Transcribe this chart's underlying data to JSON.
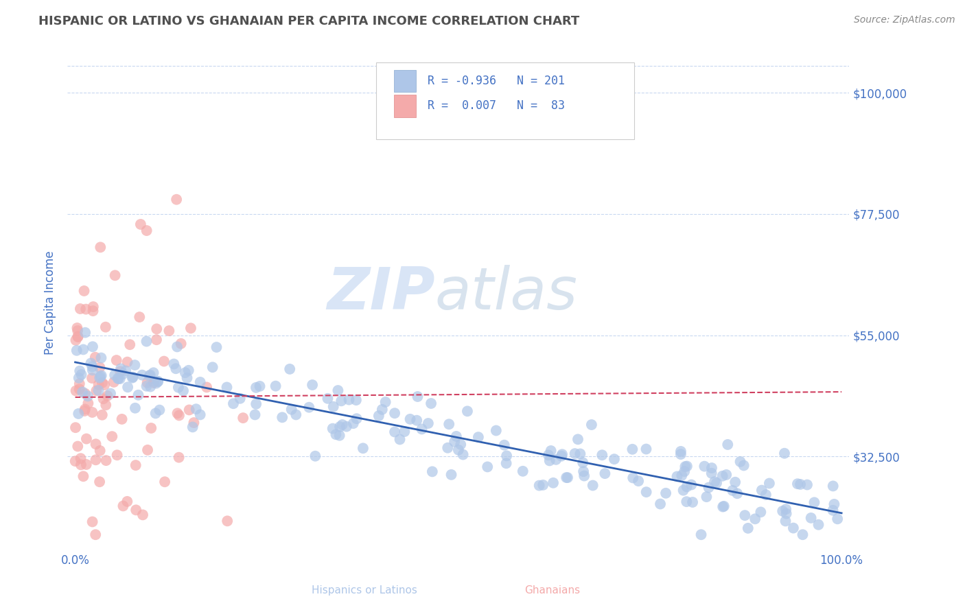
{
  "title": "HISPANIC OR LATINO VS GHANAIAN PER CAPITA INCOME CORRELATION CHART",
  "source": "Source: ZipAtlas.com",
  "ylabel": "Per Capita Income",
  "ytick_labels": [
    "$32,500",
    "$55,000",
    "$77,500",
    "$100,000"
  ],
  "ytick_values": [
    32500,
    55000,
    77500,
    100000
  ],
  "ylim": [
    15000,
    107000
  ],
  "xlim": [
    -1.0,
    101.0
  ],
  "xtick_labels": [
    "0.0%",
    "100.0%"
  ],
  "blue_scatter_color": "#aec6e8",
  "pink_scatter_color": "#f4aaaa",
  "blue_line_color": "#3060b0",
  "pink_line_color": "#d04060",
  "watermark_zip_color": "#c0d4f0",
  "watermark_atlas_color": "#b8cce0",
  "background_color": "#ffffff",
  "grid_color": "#c8d8f0",
  "title_color": "#505050",
  "axis_label_color": "#4472c4",
  "tick_label_color": "#4472c4",
  "source_color": "#888888",
  "blue_N": 201,
  "pink_N": 83,
  "blue_line_x0": 0,
  "blue_line_x1": 100,
  "blue_line_y0": 50000,
  "blue_line_y1": 22000,
  "pink_line_x0": 0,
  "pink_line_x1": 100,
  "pink_line_y0": 43500,
  "pink_line_y1": 44500
}
